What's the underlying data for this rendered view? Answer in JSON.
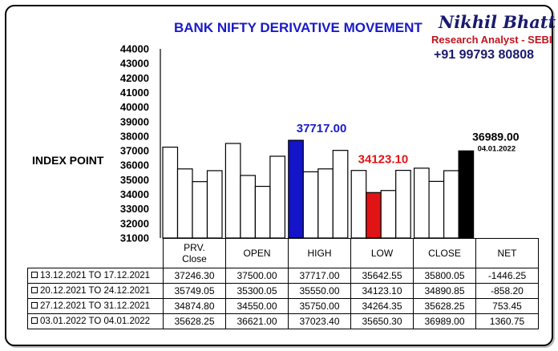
{
  "title": "BANK NIFTY DERIVATIVE MOVEMENT",
  "brand": {
    "name": "Nikhil Bhatt",
    "role": "Research Analyst - SEBI",
    "phone": "+91 99793 80808"
  },
  "colors": {
    "title": "#1a1ac8",
    "high_highlight": "#1414c8",
    "low_highlight": "#e01414",
    "close_highlight": "#000000",
    "bar_default": "#ffffff"
  },
  "chart_data": {
    "type": "bar",
    "ylabel": "INDEX POINT",
    "ylim": [
      31000,
      44000
    ],
    "yticks": [
      31000,
      32000,
      33000,
      34000,
      35000,
      36000,
      37000,
      38000,
      39000,
      40000,
      41000,
      42000,
      43000,
      44000
    ],
    "categories": [
      "PRV.\nClose",
      "OPEN",
      "HIGH",
      "LOW",
      "CLOSE"
    ],
    "series": [
      {
        "name": "13.12.2021 TO 17.12.2021",
        "values": [
          37246.3,
          37500.0,
          37717.0,
          35642.55,
          35800.05
        ]
      },
      {
        "name": "20.12.2021 TO 24.12.2021",
        "values": [
          35749.05,
          35300.05,
          35550.0,
          34123.1,
          34890.85
        ]
      },
      {
        "name": "27.12.2021 TO 31.12.2021",
        "values": [
          34874.8,
          34550.0,
          35750.0,
          34264.35,
          35628.25
        ]
      },
      {
        "name": "03.01.2022 TO 04.01.2022",
        "values": [
          35628.25,
          36621.0,
          37023.4,
          35650.3,
          36989.0
        ]
      }
    ],
    "highlights": [
      {
        "category": 2,
        "series": 0,
        "color": "#1414c8"
      },
      {
        "category": 3,
        "series": 1,
        "color": "#e01414"
      },
      {
        "category": 4,
        "series": 3,
        "color": "#000000"
      }
    ],
    "annotations": [
      {
        "text": "37717.00",
        "color": "#1a1ac8"
      },
      {
        "text": "34123.10",
        "color": "#e01414"
      },
      {
        "text": "36989.00",
        "color": "#000000"
      },
      {
        "text": "04.01.2022",
        "color": "#000000"
      }
    ]
  },
  "table": {
    "columns": [
      "PRV. Close",
      "OPEN",
      "HIGH",
      "LOW",
      "CLOSE",
      "NET"
    ],
    "rows": [
      {
        "label": "13.12.2021 TO 17.12.2021",
        "values": [
          "37246.30",
          "37500.00",
          "37717.00",
          "35642.55",
          "35800.05",
          "-1446.25"
        ]
      },
      {
        "label": "20.12.2021 TO 24.12.2021",
        "values": [
          "35749.05",
          "35300.05",
          "35550.00",
          "34123.10",
          "34890.85",
          "-858.20"
        ]
      },
      {
        "label": "27.12.2021 TO 31.12.2021",
        "values": [
          "34874.80",
          "34550.00",
          "35750.00",
          "34264.35",
          "35628.25",
          "753.45"
        ]
      },
      {
        "label": "03.01.2022 TO 04.01.2022",
        "values": [
          "35628.25",
          "36621.00",
          "37023.40",
          "35650.30",
          "36989.00",
          "1360.75"
        ]
      }
    ]
  }
}
